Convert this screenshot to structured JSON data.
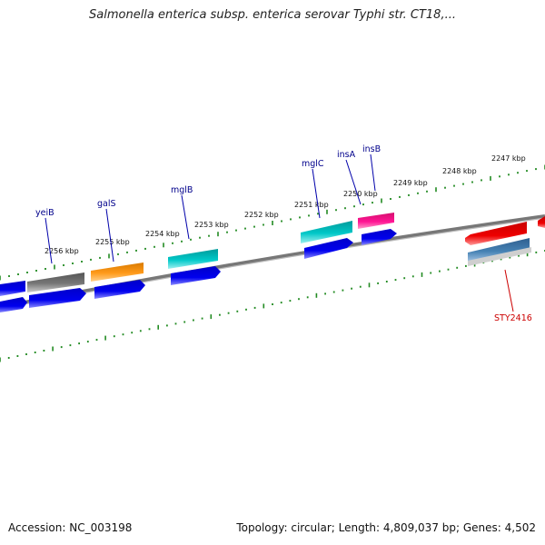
{
  "title": "Salmonella enterica subsp. enterica serovar Typhi str. CT18,...",
  "footer": {
    "accession": "Accession: NC_003198",
    "summary": "Topology: circular; Length: 4,809,037 bp; Genes: 4,502"
  },
  "scale": {
    "unit": "kbp",
    "labels": [
      "2256 kbp",
      "2255 kbp",
      "2254 kbp",
      "2253 kbp",
      "2252 kbp",
      "2251 kbp",
      "2250 kbp",
      "2249 kbp",
      "2248 kbp",
      "2247 kbp"
    ]
  },
  "genes": [
    {
      "name": "yeiB",
      "color": "#00008b"
    },
    {
      "name": "galS",
      "color": "#00008b"
    },
    {
      "name": "mglB",
      "color": "#00008b"
    },
    {
      "name": "mglC",
      "color": "#00008b"
    },
    {
      "name": "insA",
      "color": "#00008b"
    },
    {
      "name": "insB",
      "color": "#00008b"
    },
    {
      "name": "STY2416",
      "color": "#cc0000"
    }
  ],
  "feature_colors": {
    "grey": "#666666",
    "orange": "#ff8c00",
    "cyan": "#00c0c0",
    "blue": "#0000ee",
    "magenta": "#ff1493",
    "red": "#ee0000",
    "steelblue": "#4682b4",
    "ticks": "#228b22",
    "backbone": "#808080"
  }
}
